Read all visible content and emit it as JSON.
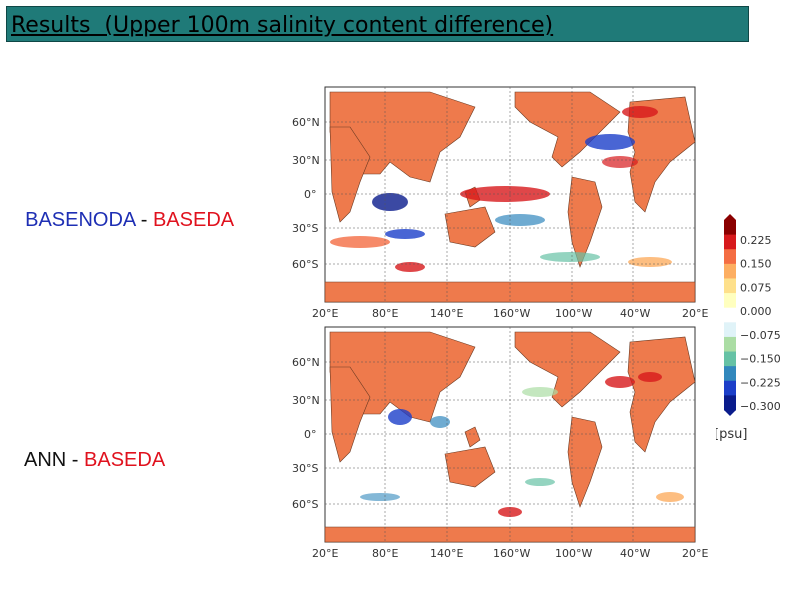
{
  "title": "Results  (Upper 100m salinity content difference)",
  "panels": [
    {
      "label_parts": [
        "BASENODA",
        " - ",
        "BASEDA"
      ],
      "label_colors": [
        "blue",
        "black",
        "red"
      ]
    },
    {
      "label_parts": [
        "ANN",
        " - ",
        "BASEDA"
      ],
      "label_colors": [
        "black",
        "black",
        "red"
      ]
    }
  ],
  "map_axes": {
    "lat_ticks": [
      "60°N",
      "30°N",
      "0°",
      "30°S",
      "60°S"
    ],
    "lon_ticks": [
      "20°E",
      "80°E",
      "140°E",
      "160°W",
      "100°W",
      "40°W",
      "20°E"
    ]
  },
  "colorbar": {
    "ticks": [
      "0.225",
      "0.150",
      "0.075",
      "0.000",
      "−0.075",
      "−0.150",
      "−0.225",
      "−0.300"
    ],
    "unit": "[psu]",
    "colors": [
      "#8b0000",
      "#d7191c",
      "#f46d43",
      "#fdae61",
      "#fee08b",
      "#ffffbf",
      "#ffffff",
      "#e0f3f8",
      "#abdda4",
      "#66c2a5",
      "#3288bd",
      "#1c3fc9",
      "#0a1c8c"
    ]
  },
  "colors": {
    "land": "#ee7a4c",
    "ocean": "#ffffff",
    "title_bg": "#1f7a78"
  }
}
